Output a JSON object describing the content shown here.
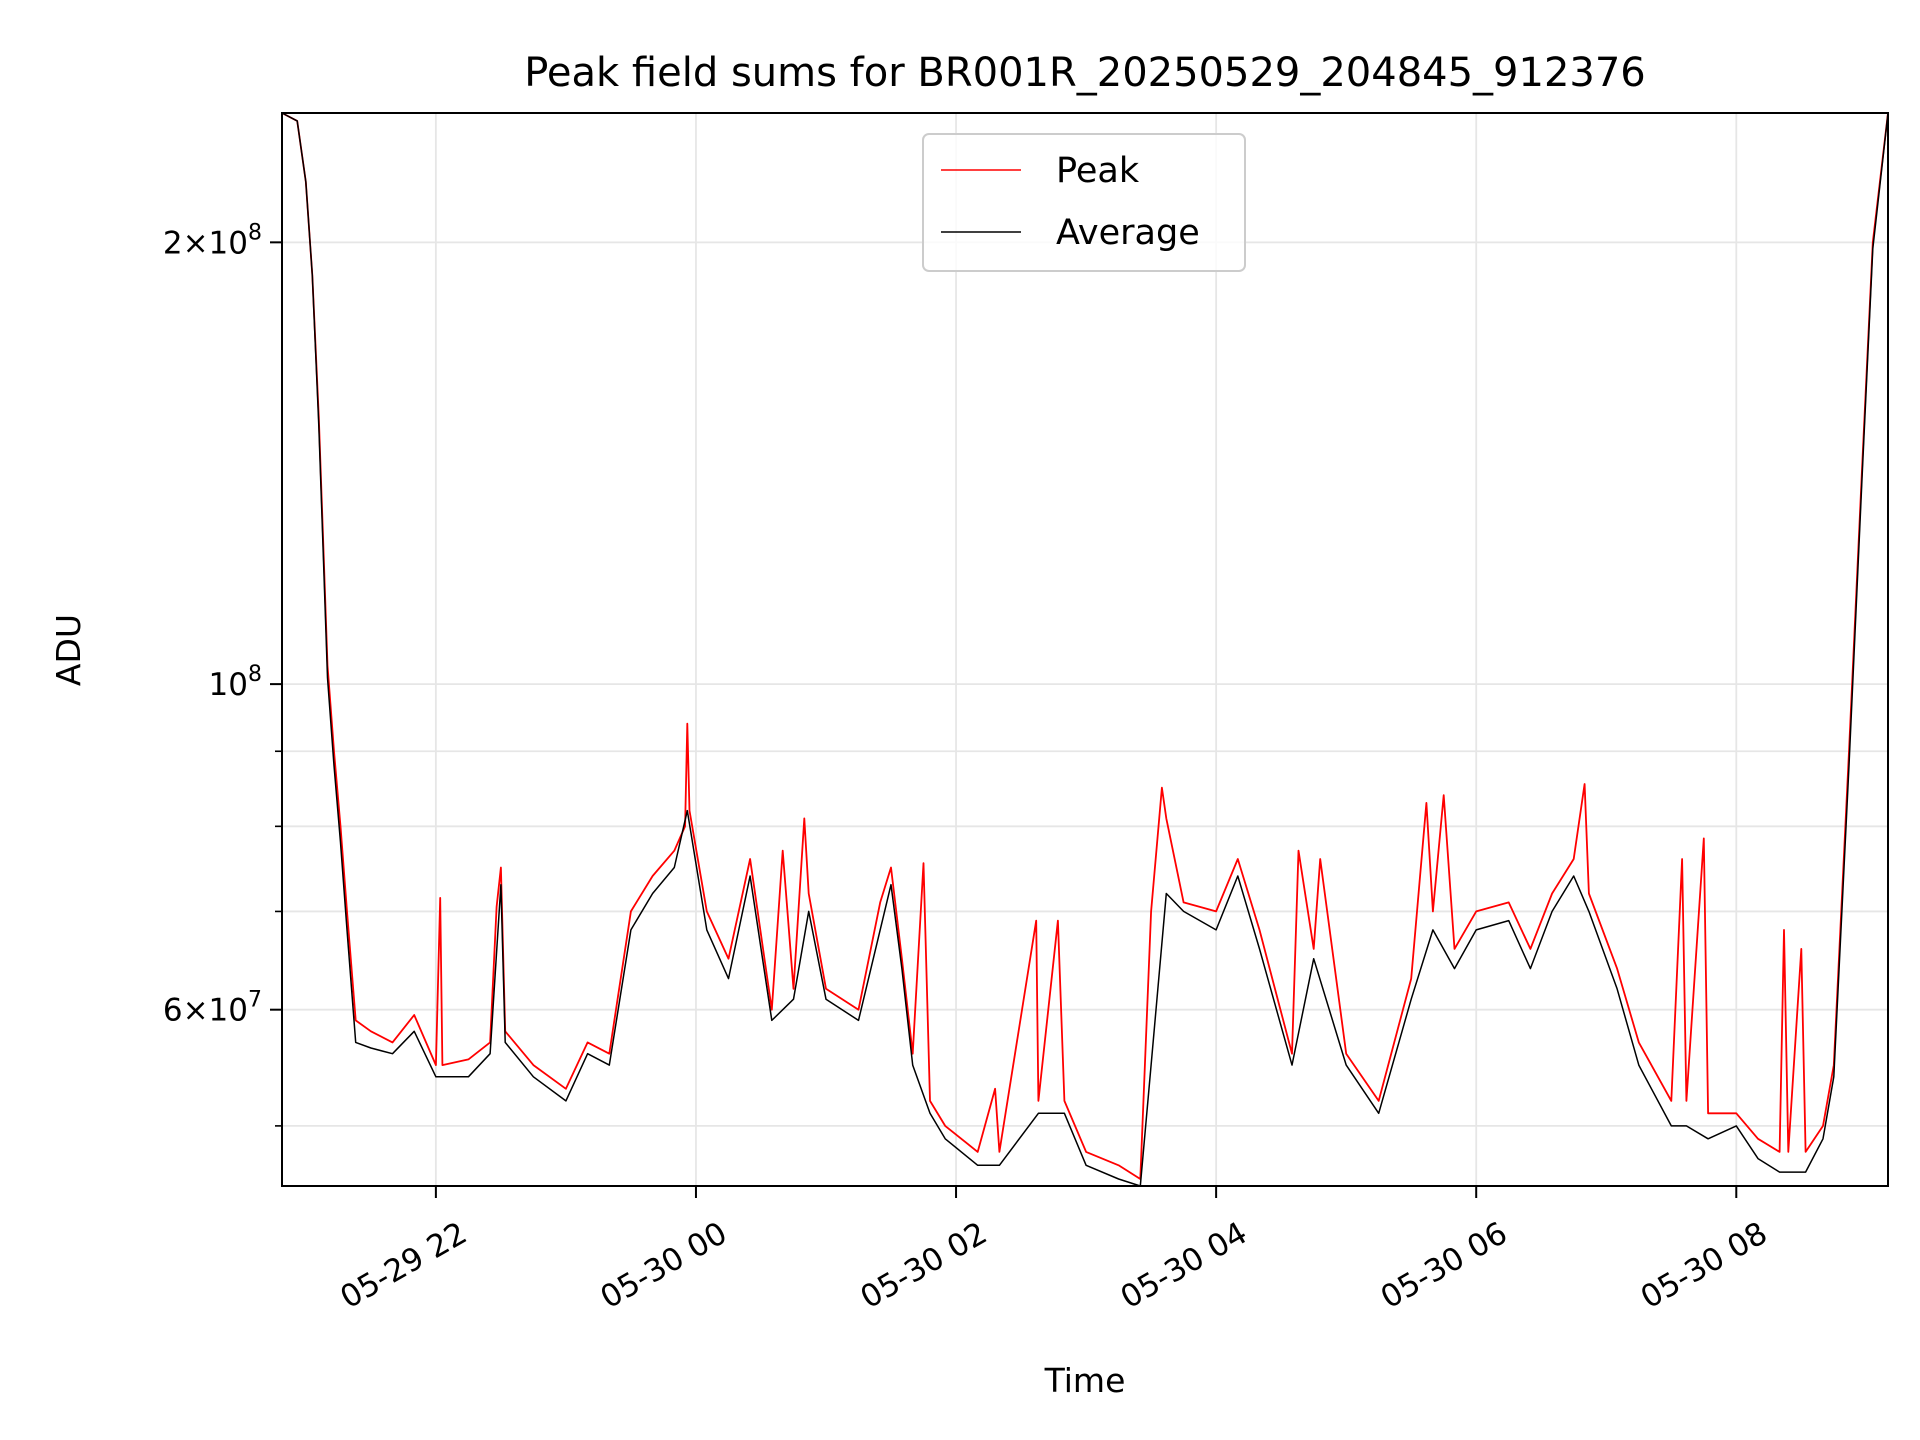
{
  "chart_data": {
    "type": "line",
    "title": "Peak field sums for BR001R_20250529_204845_912376",
    "xlabel": "Time",
    "ylabel": "ADU",
    "yscale": "log",
    "ylim": [
      45500000,
      245000000
    ],
    "xlim": [
      "2025-05-29 20:49",
      "2025-05-30 09:10"
    ],
    "x_ticks": [
      "2025-05-29 22:00",
      "2025-05-30 00:00",
      "2025-05-30 02:00",
      "2025-05-30 04:00",
      "2025-05-30 06:00",
      "2025-05-30 08:00"
    ],
    "x_tick_labels": [
      "05-29 22",
      "05-30 00",
      "05-30 02",
      "05-30 04",
      "05-30 06",
      "05-30 08"
    ],
    "y_major_ticks": [
      {
        "value": 60000000,
        "mantissa": "6",
        "exponent": "7"
      },
      {
        "value": 100000000,
        "mantissa": "",
        "exponent": "8"
      },
      {
        "value": 200000000,
        "mantissa": "2",
        "exponent": "8"
      }
    ],
    "y_minor_ticks": [
      50000000,
      70000000,
      80000000,
      90000000
    ],
    "grid": true,
    "legend_position": "upper center",
    "series": [
      {
        "name": "Peak",
        "color": "#ff0000",
        "points": [
          [
            "2025-05-29 20:49",
            245000000
          ],
          [
            "2025-05-29 20:56",
            242000000
          ],
          [
            "2025-05-29 21:00",
            220000000
          ],
          [
            "2025-05-29 21:03",
            190000000
          ],
          [
            "2025-05-29 21:06",
            152000000
          ],
          [
            "2025-05-29 21:08",
            125000000
          ],
          [
            "2025-05-29 21:10",
            103000000
          ],
          [
            "2025-05-29 21:13",
            90000000
          ],
          [
            "2025-05-29 21:16",
            80000000
          ],
          [
            "2025-05-29 21:19",
            70000000
          ],
          [
            "2025-05-29 21:23",
            59000000
          ],
          [
            "2025-05-29 21:30",
            58000000
          ],
          [
            "2025-05-29 21:40",
            57000000
          ],
          [
            "2025-05-29 21:50",
            59500000
          ],
          [
            "2025-05-29 22:00",
            55000000
          ],
          [
            "2025-05-29 22:02",
            71500000
          ],
          [
            "2025-05-29 22:03",
            55000000
          ],
          [
            "2025-05-29 22:15",
            55500000
          ],
          [
            "2025-05-29 22:25",
            57000000
          ],
          [
            "2025-05-29 22:28",
            70500000
          ],
          [
            "2025-05-29 22:30",
            75000000
          ],
          [
            "2025-05-29 22:32",
            58000000
          ],
          [
            "2025-05-29 22:45",
            55000000
          ],
          [
            "2025-05-29 23:00",
            53000000
          ],
          [
            "2025-05-29 23:10",
            57000000
          ],
          [
            "2025-05-29 23:20",
            56000000
          ],
          [
            "2025-05-29 23:30",
            70000000
          ],
          [
            "2025-05-29 23:40",
            74000000
          ],
          [
            "2025-05-29 23:50",
            77000000
          ],
          [
            "2025-05-29 23:55",
            80000000
          ],
          [
            "2025-05-29 23:56",
            94000000
          ],
          [
            "2025-05-29 23:57",
            82000000
          ],
          [
            "2025-05-30 00:05",
            70000000
          ],
          [
            "2025-05-30 00:15",
            65000000
          ],
          [
            "2025-05-30 00:25",
            76000000
          ],
          [
            "2025-05-30 00:35",
            60000000
          ],
          [
            "2025-05-30 00:40",
            77000000
          ],
          [
            "2025-05-30 00:45",
            62000000
          ],
          [
            "2025-05-30 00:50",
            81000000
          ],
          [
            "2025-05-30 00:52",
            72000000
          ],
          [
            "2025-05-30 01:00",
            62000000
          ],
          [
            "2025-05-30 01:15",
            60000000
          ],
          [
            "2025-05-30 01:25",
            71000000
          ],
          [
            "2025-05-30 01:30",
            75000000
          ],
          [
            "2025-05-30 01:35",
            65000000
          ],
          [
            "2025-05-30 01:40",
            56000000
          ],
          [
            "2025-05-30 01:45",
            75500000
          ],
          [
            "2025-05-30 01:48",
            52000000
          ],
          [
            "2025-05-30 01:55",
            50000000
          ],
          [
            "2025-05-30 02:10",
            48000000
          ],
          [
            "2025-05-30 02:18",
            53000000
          ],
          [
            "2025-05-30 02:20",
            48000000
          ],
          [
            "2025-05-30 02:37",
            69000000
          ],
          [
            "2025-05-30 02:38",
            52000000
          ],
          [
            "2025-05-30 02:47",
            69000000
          ],
          [
            "2025-05-30 02:50",
            52000000
          ],
          [
            "2025-05-30 03:00",
            48000000
          ],
          [
            "2025-05-30 03:15",
            47000000
          ],
          [
            "2025-05-30 03:25",
            46000000
          ],
          [
            "2025-05-30 03:30",
            70000000
          ],
          [
            "2025-05-30 03:35",
            85000000
          ],
          [
            "2025-05-30 03:37",
            81000000
          ],
          [
            "2025-05-30 03:45",
            71000000
          ],
          [
            "2025-05-30 04:00",
            70000000
          ],
          [
            "2025-05-30 04:10",
            76000000
          ],
          [
            "2025-05-30 04:20",
            68000000
          ],
          [
            "2025-05-30 04:35",
            56000000
          ],
          [
            "2025-05-30 04:38",
            77000000
          ],
          [
            "2025-05-30 04:45",
            66000000
          ],
          [
            "2025-05-30 04:48",
            76000000
          ],
          [
            "2025-05-30 05:00",
            56000000
          ],
          [
            "2025-05-30 05:15",
            52000000
          ],
          [
            "2025-05-30 05:30",
            63000000
          ],
          [
            "2025-05-30 05:37",
            83000000
          ],
          [
            "2025-05-30 05:40",
            70000000
          ],
          [
            "2025-05-30 05:45",
            84000000
          ],
          [
            "2025-05-30 05:50",
            66000000
          ],
          [
            "2025-05-30 06:00",
            70000000
          ],
          [
            "2025-05-30 06:15",
            71000000
          ],
          [
            "2025-05-30 06:25",
            66000000
          ],
          [
            "2025-05-30 06:35",
            72000000
          ],
          [
            "2025-05-30 06:45",
            76000000
          ],
          [
            "2025-05-30 06:50",
            85500000
          ],
          [
            "2025-05-30 06:52",
            72000000
          ],
          [
            "2025-05-30 07:05",
            64000000
          ],
          [
            "2025-05-30 07:15",
            57000000
          ],
          [
            "2025-05-30 07:30",
            52000000
          ],
          [
            "2025-05-30 07:35",
            76000000
          ],
          [
            "2025-05-30 07:37",
            52000000
          ],
          [
            "2025-05-30 07:45",
            78500000
          ],
          [
            "2025-05-30 07:47",
            51000000
          ],
          [
            "2025-05-30 08:00",
            51000000
          ],
          [
            "2025-05-30 08:10",
            49000000
          ],
          [
            "2025-05-30 08:20",
            48000000
          ],
          [
            "2025-05-30 08:22",
            68000000
          ],
          [
            "2025-05-30 08:24",
            48000000
          ],
          [
            "2025-05-30 08:30",
            66000000
          ],
          [
            "2025-05-30 08:32",
            48000000
          ],
          [
            "2025-05-30 08:40",
            50000000
          ],
          [
            "2025-05-30 08:45",
            55000000
          ],
          [
            "2025-05-30 08:52",
            90000000
          ],
          [
            "2025-05-30 08:58",
            140000000
          ],
          [
            "2025-05-30 09:03",
            200000000
          ],
          [
            "2025-05-30 09:10",
            245000000
          ]
        ]
      },
      {
        "name": "Average",
        "color": "#000000",
        "points": [
          [
            "2025-05-29 20:49",
            245000000
          ],
          [
            "2025-05-29 20:56",
            242000000
          ],
          [
            "2025-05-29 21:00",
            220000000
          ],
          [
            "2025-05-29 21:03",
            190000000
          ],
          [
            "2025-05-29 21:06",
            150000000
          ],
          [
            "2025-05-29 21:08",
            123000000
          ],
          [
            "2025-05-29 21:10",
            101000000
          ],
          [
            "2025-05-29 21:13",
            88000000
          ],
          [
            "2025-05-29 21:16",
            78000000
          ],
          [
            "2025-05-29 21:19",
            68000000
          ],
          [
            "2025-05-29 21:23",
            57000000
          ],
          [
            "2025-05-29 21:30",
            56500000
          ],
          [
            "2025-05-29 21:40",
            56000000
          ],
          [
            "2025-05-29 21:50",
            58000000
          ],
          [
            "2025-05-29 22:00",
            54000000
          ],
          [
            "2025-05-29 22:15",
            54000000
          ],
          [
            "2025-05-29 22:25",
            56000000
          ],
          [
            "2025-05-29 22:30",
            73000000
          ],
          [
            "2025-05-29 22:32",
            57000000
          ],
          [
            "2025-05-29 22:45",
            54000000
          ],
          [
            "2025-05-29 23:00",
            52000000
          ],
          [
            "2025-05-29 23:10",
            56000000
          ],
          [
            "2025-05-29 23:20",
            55000000
          ],
          [
            "2025-05-29 23:30",
            68000000
          ],
          [
            "2025-05-29 23:40",
            72000000
          ],
          [
            "2025-05-29 23:50",
            75000000
          ],
          [
            "2025-05-29 23:56",
            82000000
          ],
          [
            "2025-05-30 00:05",
            68000000
          ],
          [
            "2025-05-30 00:15",
            63000000
          ],
          [
            "2025-05-30 00:25",
            74000000
          ],
          [
            "2025-05-30 00:35",
            59000000
          ],
          [
            "2025-05-30 00:45",
            61000000
          ],
          [
            "2025-05-30 00:52",
            70000000
          ],
          [
            "2025-05-30 01:00",
            61000000
          ],
          [
            "2025-05-30 01:15",
            59000000
          ],
          [
            "2025-05-30 01:30",
            73000000
          ],
          [
            "2025-05-30 01:35",
            64000000
          ],
          [
            "2025-05-30 01:40",
            55000000
          ],
          [
            "2025-05-30 01:48",
            51000000
          ],
          [
            "2025-05-30 01:55",
            49000000
          ],
          [
            "2025-05-30 02:10",
            47000000
          ],
          [
            "2025-05-30 02:20",
            47000000
          ],
          [
            "2025-05-30 02:38",
            51000000
          ],
          [
            "2025-05-30 02:50",
            51000000
          ],
          [
            "2025-05-30 03:00",
            47000000
          ],
          [
            "2025-05-30 03:15",
            46000000
          ],
          [
            "2025-05-30 03:25",
            45500000
          ],
          [
            "2025-05-30 03:30",
            55000000
          ],
          [
            "2025-05-30 03:37",
            72000000
          ],
          [
            "2025-05-30 03:45",
            70000000
          ],
          [
            "2025-05-30 04:00",
            68000000
          ],
          [
            "2025-05-30 04:10",
            74000000
          ],
          [
            "2025-05-30 04:20",
            66000000
          ],
          [
            "2025-05-30 04:35",
            55000000
          ],
          [
            "2025-05-30 04:45",
            65000000
          ],
          [
            "2025-05-30 05:00",
            55000000
          ],
          [
            "2025-05-30 05:15",
            51000000
          ],
          [
            "2025-05-30 05:30",
            61000000
          ],
          [
            "2025-05-30 05:40",
            68000000
          ],
          [
            "2025-05-30 05:50",
            64000000
          ],
          [
            "2025-05-30 06:00",
            68000000
          ],
          [
            "2025-05-30 06:15",
            69000000
          ],
          [
            "2025-05-30 06:25",
            64000000
          ],
          [
            "2025-05-30 06:35",
            70000000
          ],
          [
            "2025-05-30 06:45",
            74000000
          ],
          [
            "2025-05-30 06:52",
            70000000
          ],
          [
            "2025-05-30 07:05",
            62000000
          ],
          [
            "2025-05-30 07:15",
            55000000
          ],
          [
            "2025-05-30 07:30",
            50000000
          ],
          [
            "2025-05-30 07:37",
            50000000
          ],
          [
            "2025-05-30 07:47",
            49000000
          ],
          [
            "2025-05-30 08:00",
            50000000
          ],
          [
            "2025-05-30 08:10",
            47500000
          ],
          [
            "2025-05-30 08:20",
            46500000
          ],
          [
            "2025-05-30 08:32",
            46500000
          ],
          [
            "2025-05-30 08:40",
            49000000
          ],
          [
            "2025-05-30 08:45",
            54000000
          ],
          [
            "2025-05-30 08:52",
            88000000
          ],
          [
            "2025-05-30 08:58",
            138000000
          ],
          [
            "2025-05-30 09:03",
            198000000
          ],
          [
            "2025-05-30 09:10",
            245000000
          ]
        ]
      }
    ]
  }
}
